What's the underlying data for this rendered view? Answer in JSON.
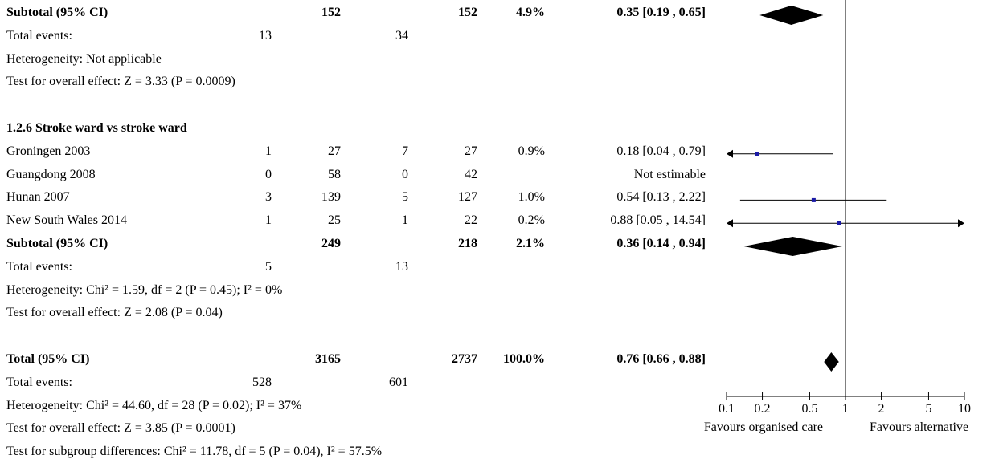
{
  "rows": [
    {
      "label": "Subtotal (95% CI)",
      "bold": true,
      "ee": "",
      "et": "152",
      "ce": "",
      "ct": "152",
      "w": "4.9%",
      "or": "0.35 [0.19 , 0.65]"
    },
    {
      "label": "Total events:",
      "bold": false,
      "ee": "13",
      "et": "",
      "ce": "34",
      "ct": "",
      "w": "",
      "or": ""
    },
    {
      "label": "Heterogeneity: Not applicable",
      "bold": false,
      "ee": "",
      "et": "",
      "ce": "",
      "ct": "",
      "w": "",
      "or": ""
    },
    {
      "label": "Test for overall effect: Z = 3.33 (P = 0.0009)",
      "bold": false,
      "ee": "",
      "et": "",
      "ce": "",
      "ct": "",
      "w": "",
      "or": ""
    },
    {
      "label": "",
      "bold": false,
      "ee": "",
      "et": "",
      "ce": "",
      "ct": "",
      "w": "",
      "or": ""
    },
    {
      "label": "1.2.6 Stroke ward vs stroke ward",
      "bold": true,
      "ee": "",
      "et": "",
      "ce": "",
      "ct": "",
      "w": "",
      "or": ""
    },
    {
      "label": "Groningen 2003",
      "bold": false,
      "ee": "1",
      "et": "27",
      "ce": "7",
      "ct": "27",
      "w": "0.9%",
      "or": "0.18 [0.04 , 0.79]"
    },
    {
      "label": "Guangdong 2008",
      "bold": false,
      "ee": "0",
      "et": "58",
      "ce": "0",
      "ct": "42",
      "w": "",
      "or": "Not estimable"
    },
    {
      "label": "Hunan 2007",
      "bold": false,
      "ee": "3",
      "et": "139",
      "ce": "5",
      "ct": "127",
      "w": "1.0%",
      "or": "0.54 [0.13 , 2.22]"
    },
    {
      "label": "New South Wales 2014",
      "bold": false,
      "ee": "1",
      "et": "25",
      "ce": "1",
      "ct": "22",
      "w": "0.2%",
      "or": "0.88 [0.05 , 14.54]"
    },
    {
      "label": "Subtotal (95% CI)",
      "bold": true,
      "ee": "",
      "et": "249",
      "ce": "",
      "ct": "218",
      "w": "2.1%",
      "or": "0.36 [0.14 , 0.94]"
    },
    {
      "label": "Total events:",
      "bold": false,
      "ee": "5",
      "et": "",
      "ce": "13",
      "ct": "",
      "w": "",
      "or": ""
    },
    {
      "label": "Heterogeneity: Chi² = 1.59, df = 2 (P = 0.45); I² = 0%",
      "bold": false,
      "ee": "",
      "et": "",
      "ce": "",
      "ct": "",
      "w": "",
      "or": ""
    },
    {
      "label": "Test for overall effect: Z = 2.08 (P = 0.04)",
      "bold": false,
      "ee": "",
      "et": "",
      "ce": "",
      "ct": "",
      "w": "",
      "or": ""
    },
    {
      "label": "",
      "bold": false,
      "ee": "",
      "et": "",
      "ce": "",
      "ct": "",
      "w": "",
      "or": ""
    },
    {
      "label": "Total (95% CI)",
      "bold": true,
      "ee": "",
      "et": "3165",
      "ce": "",
      "ct": "2737",
      "w": "100.0%",
      "or": "0.76 [0.66 , 0.88]"
    },
    {
      "label": "Total events:",
      "bold": false,
      "ee": "528",
      "et": "",
      "ce": "601",
      "ct": "",
      "w": "",
      "or": ""
    },
    {
      "label": "Heterogeneity: Chi² = 44.60, df = 28 (P = 0.02); I² = 37%",
      "bold": false,
      "ee": "",
      "et": "",
      "ce": "",
      "ct": "",
      "w": "",
      "or": ""
    },
    {
      "label": "Test for overall effect: Z = 3.85 (P = 0.0001)",
      "bold": false,
      "ee": "",
      "et": "",
      "ce": "",
      "ct": "",
      "w": "",
      "or": ""
    },
    {
      "label": "Test for subgroup differences: Chi² = 11.78, df = 5 (P = 0.04), I² = 57.5%",
      "bold": false,
      "ee": "",
      "et": "",
      "ce": "",
      "ct": "",
      "w": "",
      "or": ""
    }
  ],
  "chart_data": {
    "type": "forest",
    "x_scale": "log",
    "xlim": [
      0.1,
      10
    ],
    "null_line": 1,
    "ticks": [
      "0.1",
      "0.2",
      "0.5",
      "1",
      "2",
      "5",
      "10"
    ],
    "favours_left": "Favours organised care",
    "favours_right": "Favours alternative",
    "marker_color": "#1a1aa6",
    "marks": [
      {
        "row": 0,
        "kind": "diamond",
        "est": 0.35,
        "lo": 0.19,
        "hi": 0.65
      },
      {
        "row": 6,
        "kind": "square",
        "est": 0.18,
        "lo": 0.04,
        "hi": 0.79
      },
      {
        "row": 8,
        "kind": "square",
        "est": 0.54,
        "lo": 0.13,
        "hi": 2.22
      },
      {
        "row": 9,
        "kind": "square",
        "est": 0.88,
        "lo": 0.05,
        "hi": 14.54
      },
      {
        "row": 10,
        "kind": "diamond",
        "est": 0.36,
        "lo": 0.14,
        "hi": 0.94
      },
      {
        "row": 15,
        "kind": "diamond",
        "est": 0.76,
        "lo": 0.66,
        "hi": 0.88
      }
    ]
  }
}
